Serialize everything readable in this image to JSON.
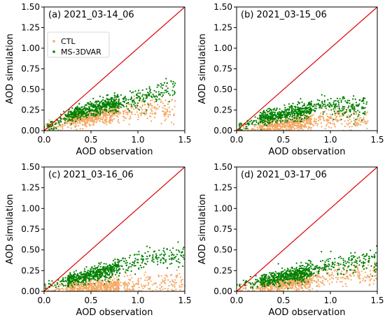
{
  "colors": {
    "ctl": "#f5a862",
    "ms3dvar": "#008000",
    "one_to_one_line": "#e00000"
  },
  "legend": {
    "placement": "upper-left of panel (a)",
    "entries": [
      "CTL",
      "MS-3DVAR"
    ]
  },
  "chart_data": [
    {
      "type": "scatter",
      "title": "(a) 2021_03-14_06",
      "xlabel": "AOD observation",
      "ylabel": "AOD simulation",
      "xlim": [
        0,
        1.5
      ],
      "ylim": [
        0,
        1.5
      ],
      "xticks": [
        "0.0",
        "0.5",
        "1.0",
        "1.5"
      ],
      "yticks": [
        "0.00",
        "0.25",
        "0.50",
        "0.75",
        "1.00",
        "1.25",
        "1.50"
      ],
      "one_to_one_line": true,
      "series": [
        {
          "name": "CTL",
          "approx_trend": [
            [
              0.05,
              0.05
            ],
            [
              0.3,
              0.12
            ],
            [
              0.5,
              0.16
            ],
            [
              0.7,
              0.2
            ],
            [
              0.9,
              0.24
            ],
            [
              1.1,
              0.28
            ],
            [
              1.3,
              0.25
            ]
          ]
        },
        {
          "name": "MS-3DVAR",
          "approx_trend": [
            [
              0.05,
              0.05
            ],
            [
              0.3,
              0.2
            ],
            [
              0.5,
              0.26
            ],
            [
              0.7,
              0.32
            ],
            [
              0.9,
              0.36
            ],
            [
              1.1,
              0.42
            ],
            [
              1.3,
              0.5
            ]
          ]
        }
      ]
    },
    {
      "type": "scatter",
      "title": "(b) 2021_03-15_06",
      "xlabel": "AOD observation",
      "ylabel": "AOD simulation",
      "xlim": [
        0,
        1.5
      ],
      "ylim": [
        0,
        1.5
      ],
      "xticks": [
        "0.0",
        "0.5",
        "1.0",
        "1.5"
      ],
      "yticks": [
        "0.00",
        "0.25",
        "0.50",
        "0.75",
        "1.00",
        "1.25",
        "1.50"
      ],
      "one_to_one_line": true,
      "series": [
        {
          "name": "CTL",
          "approx_trend": [
            [
              0.05,
              0.02
            ],
            [
              0.3,
              0.04
            ],
            [
              0.5,
              0.07
            ],
            [
              0.7,
              0.1
            ],
            [
              0.9,
              0.13
            ],
            [
              1.1,
              0.15
            ],
            [
              1.3,
              0.12
            ]
          ]
        },
        {
          "name": "MS-3DVAR",
          "approx_trend": [
            [
              0.05,
              0.05
            ],
            [
              0.3,
              0.16
            ],
            [
              0.5,
              0.2
            ],
            [
              0.7,
              0.24
            ],
            [
              0.9,
              0.3
            ],
            [
              1.1,
              0.3
            ],
            [
              1.3,
              0.28
            ]
          ]
        }
      ]
    },
    {
      "type": "scatter",
      "title": "(c) 2021_03-16_06",
      "xlabel": "AOD observation",
      "ylabel": "AOD simulation",
      "xlim": [
        0,
        1.5
      ],
      "ylim": [
        0,
        1.5
      ],
      "xticks": [
        "0.0",
        "0.5",
        "1.0",
        "1.5"
      ],
      "yticks": [
        "0.00",
        "0.25",
        "0.50",
        "0.75",
        "1.00",
        "1.25",
        "1.50"
      ],
      "one_to_one_line": true,
      "series": [
        {
          "name": "CTL",
          "approx_trend": [
            [
              0.05,
              0.02
            ],
            [
              0.3,
              0.04
            ],
            [
              0.5,
              0.05
            ],
            [
              0.7,
              0.06
            ],
            [
              0.9,
              0.07
            ],
            [
              1.1,
              0.08
            ],
            [
              1.4,
              0.1
            ]
          ]
        },
        {
          "name": "MS-3DVAR",
          "approx_trend": [
            [
              0.05,
              0.06
            ],
            [
              0.3,
              0.15
            ],
            [
              0.5,
              0.2
            ],
            [
              0.7,
              0.26
            ],
            [
              0.9,
              0.33
            ],
            [
              1.1,
              0.4
            ],
            [
              1.4,
              0.42
            ]
          ]
        }
      ]
    },
    {
      "type": "scatter",
      "title": "(d) 2021_03-17_06",
      "xlabel": "AOD observation",
      "ylabel": "AOD simulation",
      "xlim": [
        0,
        1.5
      ],
      "ylim": [
        0,
        1.5
      ],
      "xticks": [
        "0.0",
        "0.5",
        "1.0",
        "1.5"
      ],
      "yticks": [
        "0.00",
        "0.25",
        "0.50",
        "0.75",
        "1.00",
        "1.25",
        "1.50"
      ],
      "one_to_one_line": true,
      "series": [
        {
          "name": "CTL",
          "approx_trend": [
            [
              0.05,
              0.03
            ],
            [
              0.3,
              0.06
            ],
            [
              0.5,
              0.09
            ],
            [
              0.7,
              0.12
            ],
            [
              0.9,
              0.15
            ],
            [
              1.1,
              0.18
            ],
            [
              1.3,
              0.21
            ]
          ]
        },
        {
          "name": "MS-3DVAR",
          "approx_trend": [
            [
              0.05,
              0.06
            ],
            [
              0.3,
              0.14
            ],
            [
              0.5,
              0.18
            ],
            [
              0.7,
              0.22
            ],
            [
              0.9,
              0.28
            ],
            [
              1.1,
              0.34
            ],
            [
              1.3,
              0.36
            ]
          ]
        }
      ]
    }
  ]
}
